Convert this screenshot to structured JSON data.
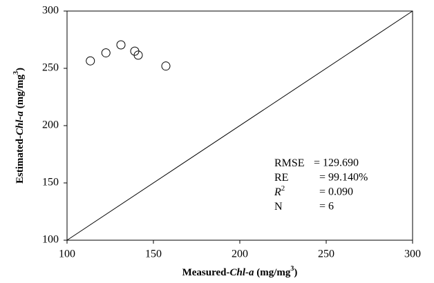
{
  "chart_data": {
    "type": "scatter",
    "x": [
      113.5,
      122.5,
      131.2,
      139.2,
      141.2,
      157.2
    ],
    "values": [
      256.5,
      263.5,
      270.5,
      265,
      261.5,
      252
    ],
    "color": "#000000",
    "xlim": [
      100,
      300
    ],
    "ylim": [
      100,
      300
    ],
    "xticks": [
      100,
      150,
      200,
      250,
      300
    ],
    "yticks": [
      100,
      150,
      200,
      250,
      300
    ],
    "diagonal": true,
    "grid": false,
    "xlabel": [
      "Measured-",
      "Chl-a",
      " (mg/mg",
      "3",
      ")"
    ],
    "ylabel": [
      "Estimated-",
      "Chl-a",
      " (mg/mg",
      "3",
      ")"
    ],
    "annotations": [
      {
        "label": "RMSE",
        "text": "= 129.690"
      },
      {
        "label": "RE",
        "text": "= 99.140%"
      },
      {
        "label": "R",
        "label_sup": "2",
        "text": "= 0.090"
      },
      {
        "label": "N",
        "text": "= 6"
      }
    ]
  }
}
